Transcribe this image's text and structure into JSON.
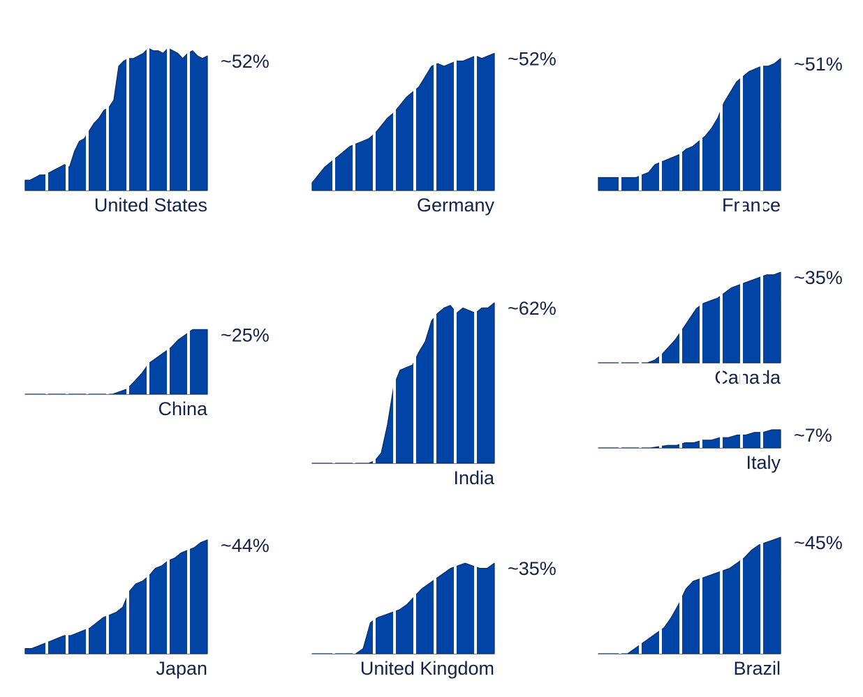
{
  "chart_data": [
    {
      "type": "area",
      "country": "United States",
      "label": "~52%",
      "y_final": 52,
      "ylim": [
        0,
        62
      ],
      "values": [
        4,
        4,
        5,
        6,
        6,
        7,
        8,
        9,
        10,
        9,
        15,
        19,
        20,
        23,
        26,
        28,
        31,
        32,
        35,
        48,
        50,
        51,
        51,
        52,
        53,
        55,
        54,
        54,
        53,
        55,
        54,
        53,
        51,
        53,
        54,
        52,
        51,
        52
      ]
    },
    {
      "type": "area",
      "country": "Germany",
      "label": "~52%",
      "y_final": 52,
      "ylim": [
        0,
        62
      ],
      "values": [
        3,
        6,
        9,
        11,
        13,
        15,
        17,
        18,
        19,
        20,
        22,
        25,
        28,
        30,
        33,
        36,
        38,
        40,
        44,
        48,
        49,
        48,
        49,
        50,
        50,
        51,
        52,
        51,
        52,
        53
      ]
    },
    {
      "type": "area",
      "country": "France",
      "label": "~51%",
      "y_final": 51,
      "ylim": [
        0,
        62
      ],
      "values": [
        5,
        5,
        5,
        5,
        5,
        5,
        5,
        6,
        7,
        10,
        11,
        12,
        13,
        14,
        16,
        17,
        19,
        21,
        24,
        28,
        34,
        38,
        42,
        44,
        46,
        47,
        48,
        48,
        49,
        51
      ]
    },
    {
      "type": "area",
      "country": "China",
      "label": "~25%",
      "y_final": 25,
      "ylim": [
        0,
        62
      ],
      "values": [
        0,
        0,
        0,
        0,
        0,
        0,
        0,
        0,
        0,
        0,
        0,
        0,
        0,
        1,
        2,
        5,
        8,
        12,
        14,
        16,
        18,
        21,
        23,
        25,
        25,
        25
      ]
    },
    {
      "type": "area",
      "country": "India",
      "label": "~62%",
      "y_final": 62,
      "ylim": [
        0,
        62
      ],
      "values": [
        0,
        0,
        0,
        0,
        0,
        0,
        0,
        0,
        0,
        0,
        1,
        4,
        15,
        30,
        36,
        37,
        38,
        43,
        47,
        55,
        58,
        60,
        61,
        58,
        60,
        59,
        58,
        60,
        60,
        62
      ]
    },
    {
      "type": "area",
      "country": "Canada",
      "label": "~35%",
      "y_final": 35,
      "ylim": [
        0,
        62
      ],
      "values": [
        0,
        0,
        0,
        0,
        0,
        0,
        0,
        0,
        1,
        3,
        6,
        9,
        13,
        17,
        21,
        23,
        24,
        25,
        27,
        29,
        30,
        31,
        32,
        33,
        34,
        34,
        35
      ]
    },
    {
      "type": "area",
      "country": "Italy",
      "label": "~7%",
      "y_final": 7,
      "ylim": [
        0,
        62
      ],
      "values": [
        0,
        0,
        0,
        0,
        0,
        0,
        0,
        0.5,
        1,
        1,
        2,
        2,
        3,
        3,
        4,
        4,
        5,
        5,
        6,
        6,
        7,
        7
      ]
    },
    {
      "type": "area",
      "country": "Japan",
      "label": "~44%",
      "y_final": 44,
      "ylim": [
        0,
        62
      ],
      "values": [
        2,
        2,
        3,
        4,
        5,
        6,
        7,
        7,
        8,
        9,
        10,
        12,
        14,
        15,
        16,
        18,
        24,
        27,
        28,
        30,
        33,
        34,
        36,
        37,
        39,
        40,
        41,
        43,
        44
      ]
    },
    {
      "type": "area",
      "country": "United Kingdom",
      "label": "~35%",
      "y_final": 35,
      "ylim": [
        0,
        62
      ],
      "values": [
        0,
        0,
        0,
        0,
        0,
        0,
        0,
        2,
        12,
        14,
        15,
        16,
        17,
        19,
        22,
        25,
        27,
        29,
        31,
        33,
        34,
        35,
        34,
        33,
        33,
        35
      ]
    },
    {
      "type": "area",
      "country": "Brazil",
      "label": "~45%",
      "y_final": 45,
      "ylim": [
        0,
        62
      ],
      "values": [
        0,
        0,
        0,
        0,
        0,
        2,
        4,
        6,
        8,
        10,
        14,
        19,
        25,
        28,
        29,
        30,
        31,
        32,
        33,
        35,
        37,
        40,
        42,
        43,
        44,
        45
      ]
    }
  ],
  "style": {
    "fill_color": "#0044a6",
    "edge_color": "#0d2c5e",
    "text_color": "#13224b"
  }
}
